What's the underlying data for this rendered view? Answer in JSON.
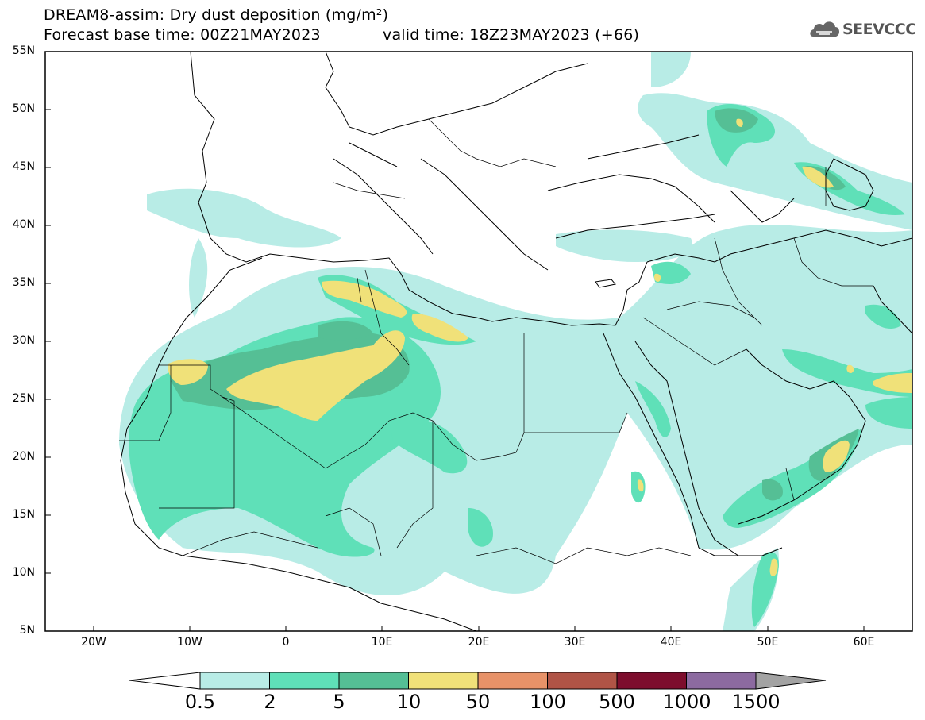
{
  "header": {
    "title_line1": "DREAM8-assim: Dry dust deposition (mg/m²)",
    "title_line2": "Forecast base time: 00Z21MAY2023",
    "valid_time": "valid time: 18Z23MAY2023 (+66)",
    "logo_text": "SEEVCCC",
    "logo_icon": "cloud-icon"
  },
  "map": {
    "lat_labels": [
      "55N",
      "50N",
      "45N",
      "40N",
      "35N",
      "30N",
      "25N",
      "20N",
      "15N",
      "10N",
      "5N"
    ],
    "lon_labels": [
      "20W",
      "10W",
      "0",
      "10E",
      "20E",
      "30E",
      "40E",
      "50E",
      "60E"
    ],
    "lon_range": [
      -25,
      65
    ],
    "lat_range": [
      5,
      55
    ]
  },
  "colorbar": {
    "labels": [
      "0.5",
      "2",
      "5",
      "10",
      "50",
      "100",
      "500",
      "1000",
      "1500"
    ],
    "colors": [
      "#b8ece6",
      "#5fe0b8",
      "#55bf95",
      "#f0e179",
      "#e89268",
      "#b05446",
      "#7d0d2d",
      "#8c6aa0",
      "#a3a3a3"
    ],
    "under_color": "#ffffff"
  },
  "colors": {
    "level1": "#b8ece6",
    "level2": "#5fe0b8",
    "level3": "#55bf95",
    "level4": "#f0e179"
  }
}
